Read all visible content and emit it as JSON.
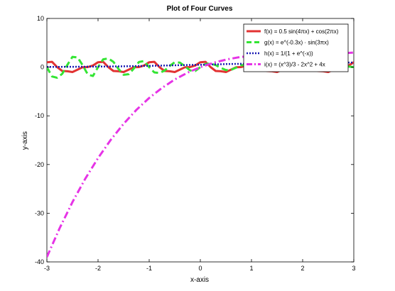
{
  "chart_data": {
    "type": "line",
    "title": "Plot of Four Curves",
    "xlabel": "x-axis",
    "ylabel": "y-axis",
    "xlim": [
      -3,
      3
    ],
    "ylim": [
      -40,
      10
    ],
    "xticks": [
      -3,
      -2,
      -1,
      0,
      1,
      2,
      3
    ],
    "yticks": [
      -40,
      -30,
      -20,
      -10,
      0,
      10
    ],
    "grid": false,
    "legend_position": "top-right",
    "series": [
      {
        "name": "f(x) = 0.5 sin(4πx) + cos(2πx)",
        "color": "#e23232",
        "style": "solid",
        "x": [
          -3,
          -2.9,
          -2.8,
          -2.7,
          -2.6,
          -2.5,
          -2.4,
          -2.3,
          -2.2,
          -2.1,
          -2,
          -1.9,
          -1.8,
          -1.7,
          -1.6,
          -1.5,
          -1.4,
          -1.3,
          -1.2,
          -1.1,
          -1,
          -0.9,
          -0.8,
          -0.7,
          -0.6,
          -0.5,
          -0.4,
          -0.3,
          -0.2,
          -0.1,
          0,
          0.1,
          0.2,
          0.3,
          0.4,
          0.5,
          0.6,
          0.7,
          0.8,
          0.9,
          1,
          1.1,
          1.2,
          1.3,
          1.4,
          1.5,
          1.6,
          1.7,
          1.8,
          1.9,
          2,
          2.1,
          2.2,
          2.3,
          2.4,
          2.5,
          2.6,
          2.7,
          2.8,
          2.9,
          3
        ],
        "y": [
          1,
          1.1,
          0.02,
          -0.78,
          -0.84,
          -1,
          -0.51,
          -0.02,
          0.02,
          0.33,
          1,
          1.1,
          0.02,
          -0.78,
          -0.84,
          -1,
          -0.51,
          -0.02,
          0.02,
          0.33,
          1,
          1.1,
          0.02,
          -0.78,
          -0.84,
          -1,
          -0.51,
          -0.02,
          0.02,
          0.33,
          1,
          1.1,
          0.02,
          -0.78,
          -0.84,
          -1,
          -0.51,
          -0.02,
          0.02,
          0.33,
          1,
          1.1,
          0.02,
          -0.78,
          -0.84,
          -1,
          -0.51,
          -0.02,
          0.02,
          0.33,
          1,
          1.1,
          0.02,
          -0.78,
          -0.84,
          -1,
          -0.51,
          -0.02,
          0.02,
          0.33,
          1
        ]
      },
      {
        "name": "g(x) = e^(-0.3x) · sin(3πx)",
        "color": "#33e533",
        "style": "dashed",
        "x": [
          -3,
          -2.9,
          -2.8,
          -2.7,
          -2.6,
          -2.5,
          -2.4,
          -2.3,
          -2.2,
          -2.1,
          -2,
          -1.9,
          -1.8,
          -1.7,
          -1.6,
          -1.5,
          -1.4,
          -1.3,
          -1.2,
          -1.1,
          -1,
          -0.9,
          -0.8,
          -0.7,
          -0.6,
          -0.5,
          -0.4,
          -0.3,
          -0.2,
          -0.1,
          0,
          0.1,
          0.2,
          0.3,
          0.4,
          0.5,
          0.6,
          0.7,
          0.8,
          0.9,
          1,
          1.1,
          1.2,
          1.3,
          1.4,
          1.5,
          1.6,
          1.7,
          1.8,
          1.9,
          2,
          2.1,
          2.2,
          2.3,
          2.4,
          2.5,
          2.6,
          2.7,
          2.8,
          2.9,
          3
        ],
        "y": [
          0,
          -1.91,
          -2.19,
          -1.37,
          0.46,
          2.12,
          1.99,
          0.38,
          -1.52,
          -1.82,
          0,
          1.61,
          1.79,
          1.09,
          -0.36,
          -1.57,
          -1.44,
          -0.27,
          1.06,
          1.25,
          0,
          -1.08,
          -1.19,
          -0.72,
          0.23,
          1.02,
          0.93,
          0.17,
          -0.67,
          -0.78,
          0,
          0.66,
          0.72,
          0.43,
          -0.14,
          -0.61,
          -0.55,
          -0.1,
          0.39,
          0.45,
          0,
          -0.38,
          -0.41,
          -0.24,
          0.08,
          0.33,
          0.3,
          0.05,
          -0.21,
          -0.24,
          0,
          0.2,
          0.21,
          0.13,
          -0.04,
          -0.17,
          -0.15,
          -0.03,
          0.11,
          0.12,
          0
        ]
      },
      {
        "name": "h(x) = 1/(1 + e^(-x))",
        "color": "#1a1ab3",
        "style": "dotted",
        "x": [
          -3,
          -2.5,
          -2,
          -1.5,
          -1,
          -0.5,
          0,
          0.5,
          1,
          1.5,
          2,
          2.5,
          3
        ],
        "y": [
          0.047,
          0.076,
          0.119,
          0.182,
          0.269,
          0.378,
          0.5,
          0.622,
          0.731,
          0.818,
          0.881,
          0.924,
          0.953
        ]
      },
      {
        "name": "i(x) = (x^3)/3 - 2x^2 + 4x",
        "color": "#e633e6",
        "style": "dashdot",
        "x": [
          -3,
          -2.75,
          -2.5,
          -2.25,
          -2,
          -1.75,
          -1.5,
          -1.25,
          -1,
          -0.75,
          -0.5,
          -0.25,
          0,
          0.25,
          0.5,
          0.75,
          1,
          1.25,
          1.5,
          1.75,
          2,
          2.25,
          2.5,
          2.75,
          3
        ],
        "y": [
          -39,
          -33.06,
          -27.71,
          -22.92,
          -18.67,
          -14.91,
          -11.63,
          -8.78,
          -6.33,
          -4.27,
          -2.54,
          -1.13,
          0,
          0.88,
          1.54,
          2.02,
          2.33,
          2.52,
          2.63,
          2.66,
          2.67,
          2.67,
          2.71,
          2.82,
          3
        ]
      }
    ]
  }
}
